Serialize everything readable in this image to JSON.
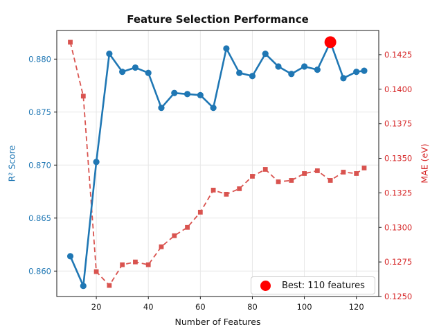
{
  "chart_data": {
    "type": "line",
    "title": "Feature Selection Performance",
    "xlabel": "Number of Features",
    "ylabel_left": "R² Score",
    "ylabel_right": "MAE (eV)",
    "grid": true,
    "legend_position": "lower right",
    "x": [
      10,
      15,
      20,
      25,
      30,
      35,
      40,
      45,
      50,
      55,
      60,
      65,
      70,
      75,
      80,
      85,
      90,
      95,
      100,
      105,
      110,
      115,
      120,
      123
    ],
    "series": [
      {
        "name": "R² Score",
        "axis": "left",
        "color": "#1f77b4",
        "marker": "circle",
        "line": "solid",
        "values": [
          0.8614,
          0.8586,
          0.8703,
          0.8805,
          0.8788,
          0.8792,
          0.8787,
          0.8754,
          0.8768,
          0.8767,
          0.8766,
          0.8754,
          0.881,
          0.8787,
          0.8784,
          0.8805,
          0.8793,
          0.8786,
          0.8793,
          0.879,
          0.8816,
          0.8782,
          0.8788,
          0.8789
        ]
      },
      {
        "name": "MAE",
        "axis": "right",
        "color": "#d9534f",
        "marker": "square",
        "line": "dashed",
        "values": [
          0.1434,
          0.1395,
          0.1268,
          0.1258,
          0.1273,
          0.1275,
          0.1273,
          0.1286,
          0.1294,
          0.13,
          0.1311,
          0.1327,
          0.1324,
          0.1328,
          0.1337,
          0.1342,
          0.1333,
          0.1334,
          0.1339,
          0.1341,
          0.1334,
          0.134,
          0.1339,
          0.1343
        ]
      }
    ],
    "best_point": {
      "x": 110,
      "r2": 0.8816,
      "color": "#ff0000",
      "legend_label": "Best: 110 features"
    },
    "axes": {
      "x": {
        "min": 4.8,
        "max": 128.6,
        "ticks": [
          20,
          40,
          60,
          80,
          100,
          120
        ],
        "tick_labels": [
          "20",
          "40",
          "60",
          "80",
          "100",
          "120"
        ],
        "color": "#1a1a1a"
      },
      "left": {
        "min": 0.8576,
        "max": 0.8827,
        "ticks": [
          0.86,
          0.865,
          0.87,
          0.875,
          0.88
        ],
        "tick_labels": [
          "0.860",
          "0.865",
          "0.870",
          "0.875",
          "0.880"
        ],
        "color": "#1f77b4"
      },
      "right": {
        "min": 0.125,
        "max": 0.14425,
        "ticks": [
          0.125,
          0.1275,
          0.13,
          0.1325,
          0.135,
          0.1375,
          0.14,
          0.1425
        ],
        "tick_labels": [
          "0.1250",
          "0.1275",
          "0.1300",
          "0.1325",
          "0.1350",
          "0.1375",
          "0.1400",
          "0.1425"
        ],
        "color": "#d62728"
      }
    }
  }
}
